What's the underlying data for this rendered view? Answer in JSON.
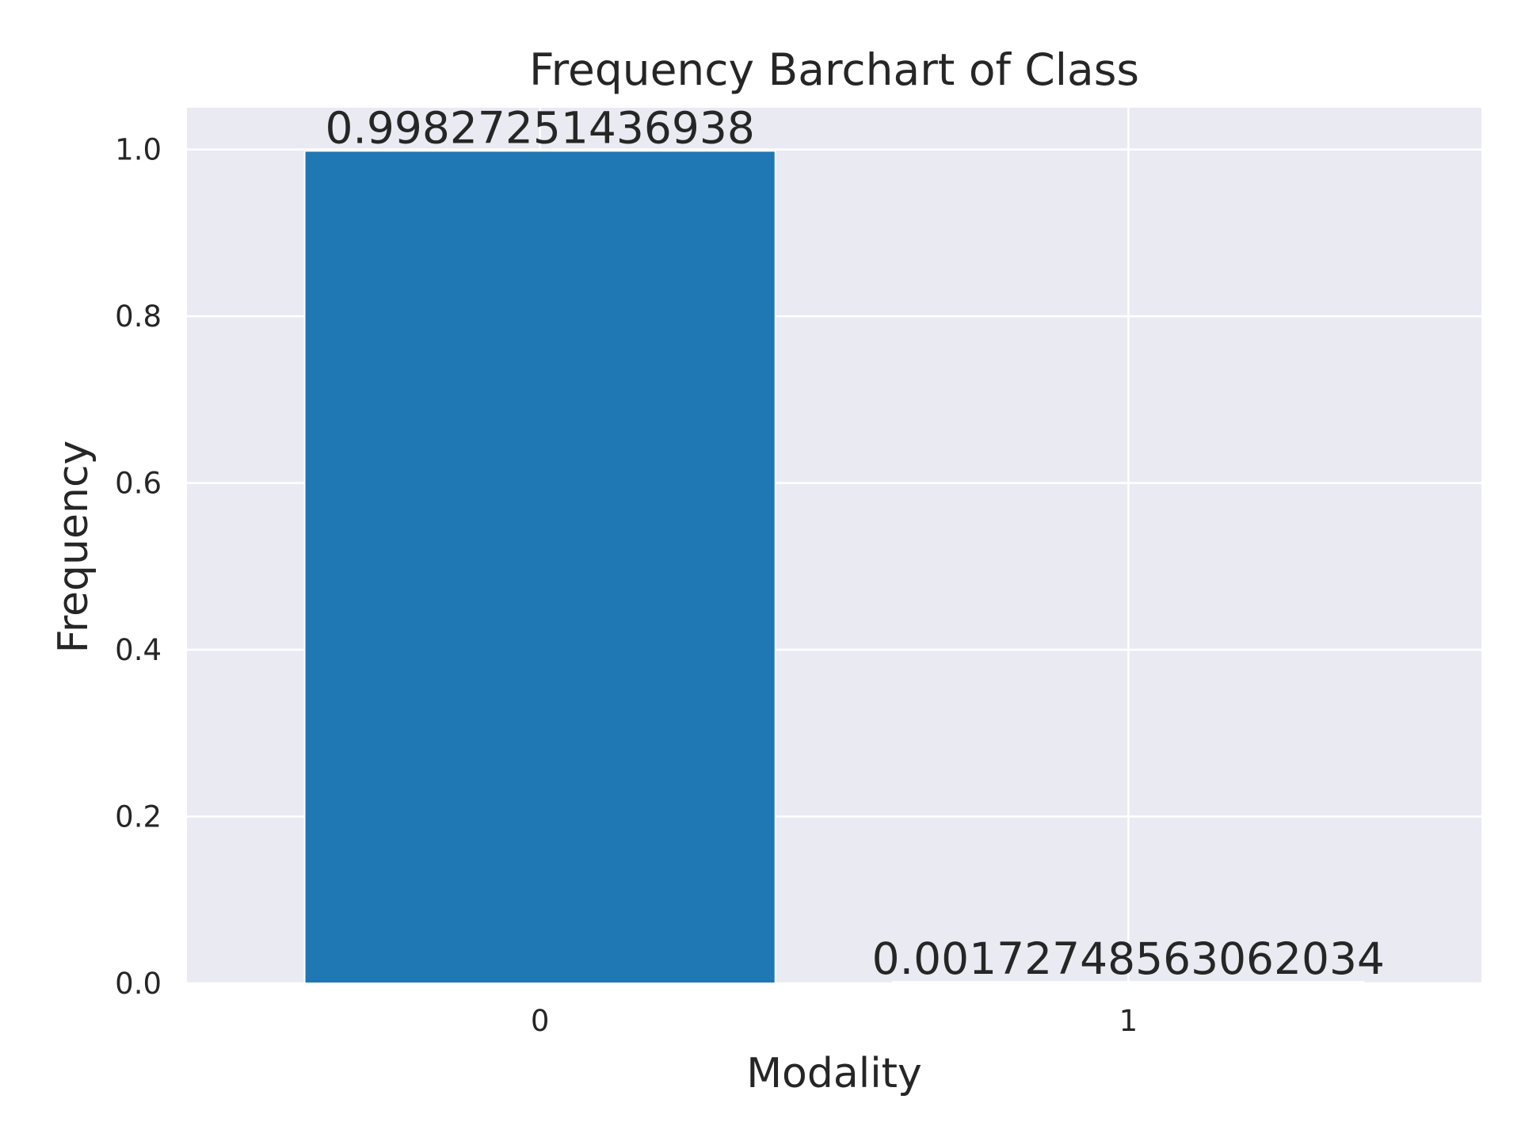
{
  "chart_data": {
    "type": "bar",
    "title": "Frequency Barchart of Class",
    "xlabel": "Modality",
    "ylabel": "Frequency",
    "categories": [
      "0",
      "1"
    ],
    "values": [
      0.99827251436938,
      0.0017274856306203
    ],
    "data_labels": [
      "0.99827251436938",
      "0.0017274856306203​4"
    ],
    "ylim": [
      0,
      1.05
    ],
    "yticks": [
      "0.0",
      "0.2",
      "0.4",
      "0.6",
      "0.8",
      "1.0"
    ],
    "grid": true,
    "colors": {
      "bar": "#1f77b4",
      "background": "#eaeaf2",
      "grid": "#ffffff",
      "text": "#262626"
    }
  }
}
